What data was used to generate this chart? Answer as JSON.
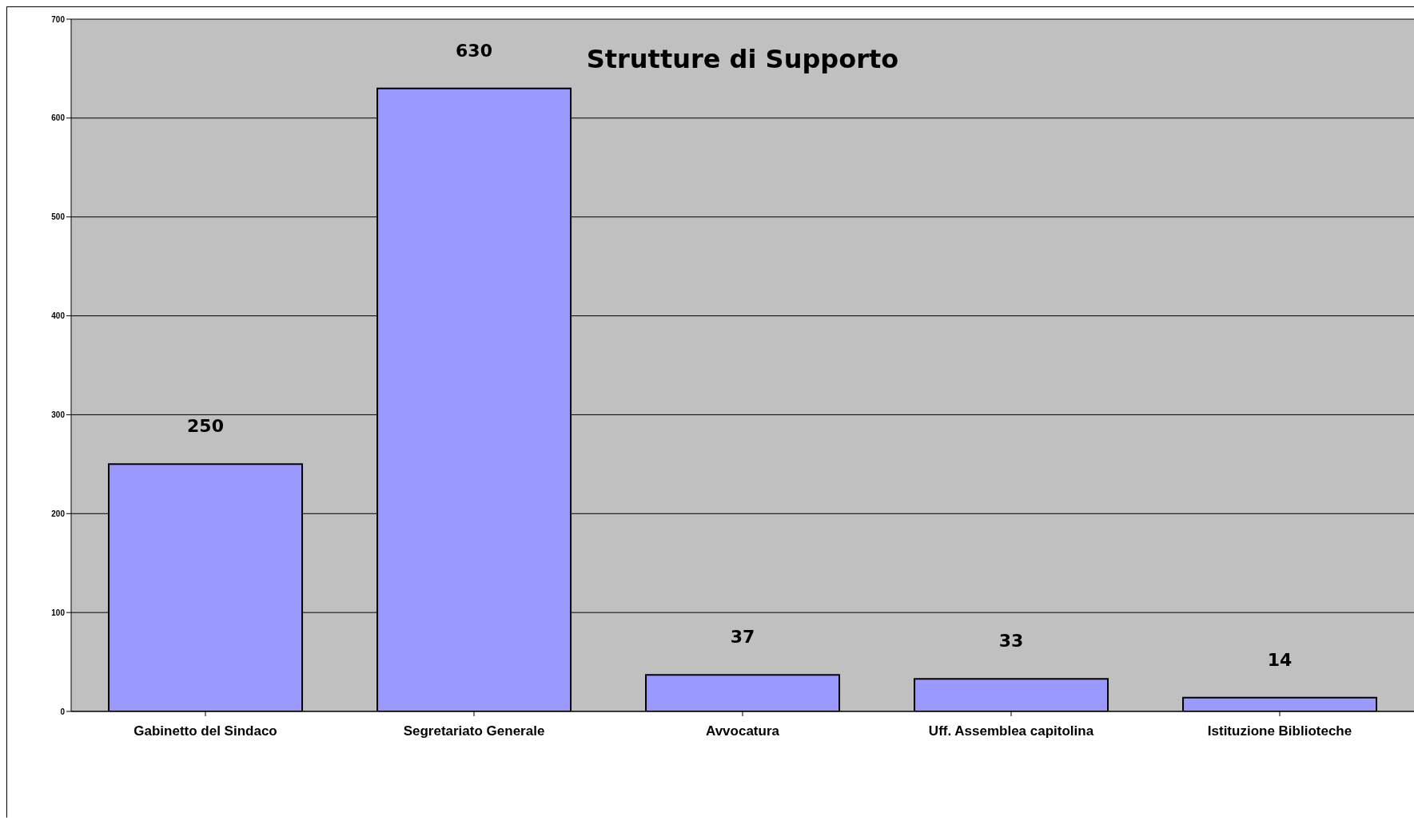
{
  "chart_data": {
    "type": "bar",
    "title": "Strutture di Supporto",
    "categories": [
      "Gabinetto del Sindaco",
      "Segretariato Generale",
      "Avvocatura",
      "Uff. Assemblea capitolina",
      "Istituzione Biblioteche"
    ],
    "values": [
      250,
      630,
      37,
      33,
      14
    ],
    "color": "#9999ff",
    "ylim": [
      0,
      700
    ],
    "yticks": [
      0,
      100,
      200,
      300,
      400,
      500,
      600,
      700
    ],
    "grid": "y",
    "data_labels": true
  }
}
